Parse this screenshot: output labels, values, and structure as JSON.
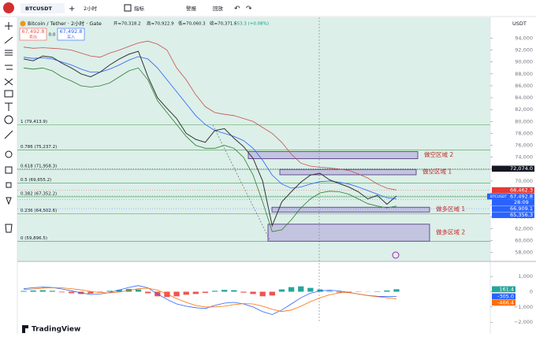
{
  "toolbar": {
    "symbol": "BTCUSDT",
    "interval": "2小时",
    "indicators": "指标",
    "alert": "警报",
    "replay": "回放"
  },
  "header": {
    "title": "Bitcoin / Tether · 2小时 · Gate",
    "open": "开=70,318.2",
    "high": "高=70,922.9",
    "low": "低=70,060.3",
    "close": "收=70,371.5",
    "change": "+53.3 (+0.08%)",
    "sell_price": "67,492.8",
    "sell": "卖出",
    "spread": "0.0",
    "buy_price": "67,492.8",
    "buy": "买入"
  },
  "chart_data": [
    {
      "type": "line",
      "axis_unit": "USDT",
      "ylim": [
        56500,
        97500
      ],
      "yticks": [
        {
          "value": 58000,
          "label": "58,000"
        },
        {
          "value": 60000,
          "label": "60,000"
        },
        {
          "value": 62000,
          "label": "62,000"
        },
        {
          "value": 64000,
          "label": "64,000"
        },
        {
          "value": 66000,
          "label": "66,000"
        },
        {
          "value": 68000,
          "label": "68,000"
        },
        {
          "value": 70000,
          "label": "70,000"
        },
        {
          "value": 72000,
          "label": "72,000"
        },
        {
          "value": 74000,
          "label": "74,000"
        },
        {
          "value": 76000,
          "label": "76,000"
        },
        {
          "value": 78000,
          "label": "78,000"
        },
        {
          "value": 80000,
          "label": "80,000"
        },
        {
          "value": 82000,
          "label": "82,000"
        },
        {
          "value": 84000,
          "label": "84,000"
        },
        {
          "value": 86000,
          "label": "86,000"
        },
        {
          "value": 88000,
          "label": "88,000"
        },
        {
          "value": 90000,
          "label": "90,000"
        },
        {
          "value": 92000,
          "label": "92,000"
        },
        {
          "value": 94000,
          "label": "94,000"
        }
      ],
      "series": [
        {
          "color": "#c94f4f",
          "values": [
            92500,
            92300,
            92400,
            92300,
            92200,
            92000,
            91500,
            91000,
            90800,
            91500,
            92000,
            92600,
            93200,
            93500,
            93000,
            92000,
            89000,
            87000,
            84500,
            82500,
            81500,
            81200,
            81000,
            80500,
            80000,
            79000,
            78000,
            76500,
            74500,
            73000,
            72500,
            72300,
            72200,
            72000,
            71800,
            71200,
            70500,
            69500,
            68800,
            68500
          ]
        },
        {
          "color": "#2e7d32",
          "values": [
            89000,
            88800,
            89000,
            88500,
            87500,
            86800,
            86000,
            85800,
            86000,
            86500,
            87500,
            88500,
            89000,
            87000,
            83500,
            81500,
            79500,
            77500,
            76000,
            75500,
            75500,
            76000,
            75500,
            74000,
            71000,
            66500,
            61500,
            61800,
            63500,
            65500,
            67000,
            68000,
            68300,
            68200,
            67800,
            67000,
            66200,
            65800,
            65500,
            65800
          ]
        },
        {
          "color": "#2962ff",
          "values": [
            90800,
            90600,
            90700,
            90500,
            90000,
            89500,
            88800,
            88300,
            88300,
            88800,
            89500,
            90300,
            90900,
            90500,
            89000,
            87000,
            85000,
            83000,
            81000,
            79500,
            78500,
            78000,
            77500,
            76800,
            75500,
            73500,
            71000,
            69500,
            68800,
            69000,
            69500,
            69900,
            70000,
            69800,
            69500,
            69000,
            68400,
            67800,
            67200,
            67000
          ]
        },
        {
          "color": "#333333",
          "values": [
            90500,
            90200,
            91000,
            90800,
            89800,
            89000,
            88000,
            87500,
            88300,
            89500,
            90500,
            91300,
            91800,
            87500,
            84000,
            82200,
            80500,
            78000,
            77000,
            76500,
            78500,
            78800,
            77200,
            75800,
            73800,
            70000,
            62500,
            66500,
            68200,
            69800,
            71000,
            71300,
            70200,
            69600,
            69000,
            68200,
            67000,
            67600,
            66100,
            67492.8
          ]
        }
      ],
      "fib_levels": [
        {
          "label": "1 (79,413.9)",
          "value": 79413.9
        },
        {
          "label": "0.786 (75,237.2)",
          "value": 75237.2
        },
        {
          "label": "0.618 (71,958.3)",
          "value": 71958.3
        },
        {
          "label": "0.5 (69,655.2)",
          "value": 69655.2
        },
        {
          "label": "0.382 (67,352.2)",
          "value": 67352.2
        },
        {
          "label": "0.236 (64,502.6)",
          "value": 64502.6
        },
        {
          "label": "0 (59,896.5)",
          "value": 59896.5
        }
      ],
      "zones": [
        {
          "label": "做空区域 2",
          "low": 73750,
          "high": 74950
        },
        {
          "label": "做空区域 1",
          "low": 71050,
          "high": 71950
        },
        {
          "label": "做多区域 1",
          "low": 64800,
          "high": 65600
        },
        {
          "label": "做多区域 2",
          "low": 59900,
          "high": 62750
        }
      ],
      "price_labels": [
        {
          "value": 72074.0,
          "label": "72,074.0",
          "color": "#131722"
        },
        {
          "value": 68462.3,
          "label": "68,462.3",
          "color": "#e53935"
        },
        {
          "value": 67492.8,
          "label": "67,492.8",
          "color": "#2962ff",
          "symbol": "BTCUSDT",
          "countdown": "28:09"
        },
        {
          "value": 66909.1,
          "label": "66,909.1",
          "color": "#2962ff"
        },
        {
          "value": 65356.3,
          "label": "65,356.3",
          "color": "#2962ff"
        }
      ]
    },
    {
      "type": "macd",
      "ylim": [
        -2040,
        1780
      ],
      "yticks": [
        {
          "value": 1000,
          "label": "1,000"
        },
        0,
        {
          "value": -1000,
          "label": "−1,000"
        },
        {
          "value": -2000,
          "label": "−2,000"
        }
      ],
      "histogram": {
        "up_color": "#26a69a",
        "down_color": "#ef5350",
        "values": [
          50,
          80,
          100,
          60,
          -40,
          -100,
          -150,
          -120,
          -30,
          60,
          120,
          180,
          150,
          -100,
          -300,
          -350,
          -300,
          -200,
          -150,
          -80,
          60,
          120,
          100,
          -60,
          -150,
          -300,
          -250,
          150,
          300,
          350,
          250,
          150,
          50,
          -50,
          -80,
          -20,
          10,
          30,
          80,
          161.4
        ],
        "last_label": "161.4"
      },
      "series": [
        {
          "color": "#2962ff",
          "values": [
            200,
            260,
            300,
            280,
            180,
            60,
            -80,
            -180,
            -150,
            -50,
            120,
            280,
            400,
            250,
            -150,
            -500,
            -800,
            -950,
            -1050,
            -1100,
            -900,
            -750,
            -700,
            -800,
            -1000,
            -1300,
            -1500,
            -1200,
            -800,
            -400,
            -100,
            50,
            100,
            50,
            -50,
            -150,
            -250,
            -300,
            -320,
            -305.0
          ],
          "last_label": "-305.0"
        },
        {
          "color": "#ff6d00",
          "values": [
            150,
            180,
            230,
            260,
            250,
            200,
            120,
            20,
            -60,
            -80,
            -20,
            80,
            200,
            230,
            100,
            -150,
            -450,
            -700,
            -900,
            -1000,
            -1000,
            -950,
            -850,
            -780,
            -800,
            -950,
            -1150,
            -1300,
            -1200,
            -950,
            -650,
            -400,
            -200,
            -80,
            -30,
            -150,
            -250,
            -330,
            -400,
            -466.4
          ],
          "last_label": "-466.4"
        }
      ]
    }
  ],
  "brand": "TradingView"
}
